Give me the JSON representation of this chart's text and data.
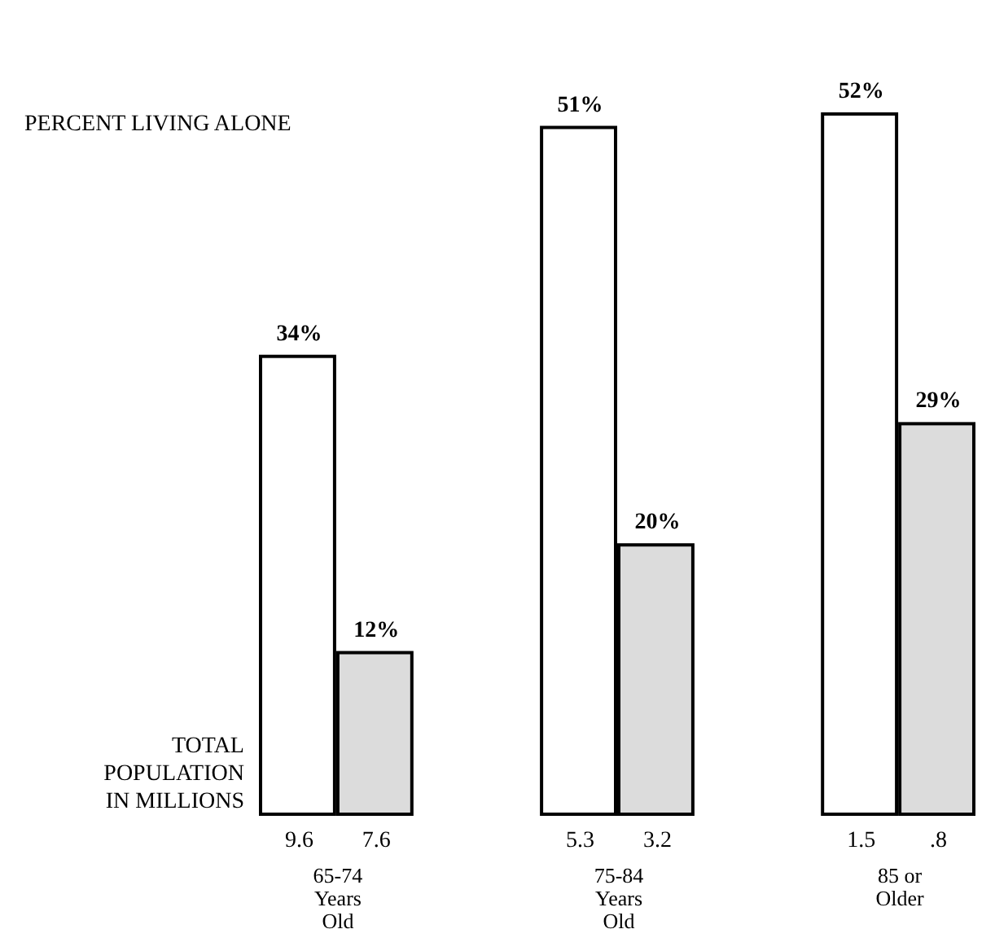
{
  "chart_data": {
    "type": "bar",
    "categories": [
      "65-74 Years Old",
      "75-84 Years Old",
      "85 or Older"
    ],
    "series": [
      {
        "color": "#ffffff",
        "values": [
          34,
          51,
          52
        ],
        "value_labels": [
          "34%",
          "51%",
          "52%"
        ]
      },
      {
        "color": "#dcdcdc",
        "values": [
          12,
          20,
          29
        ],
        "value_labels": [
          "12%",
          "20%",
          "29%"
        ]
      }
    ],
    "annotations": [
      "PERCENT LIVING ALONE",
      "TOTAL POPULATION IN MILLIONS",
      "9.6",
      "7.6",
      "5.3",
      "3.2",
      "1.5",
      ".8"
    ]
  }
}
